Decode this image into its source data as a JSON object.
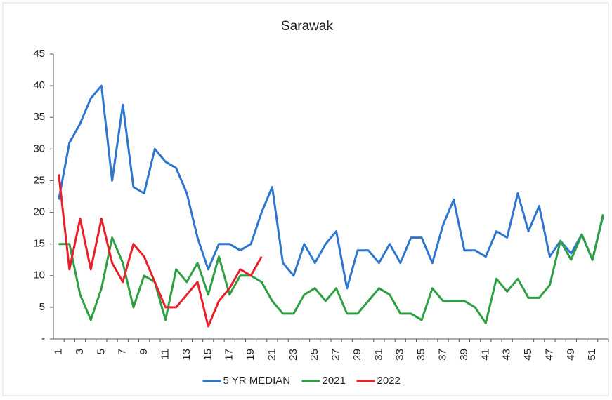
{
  "chart_data": {
    "type": "line",
    "title": "Sarawak",
    "categories": [
      "1",
      null,
      "3",
      null,
      "5",
      null,
      "7",
      null,
      "9",
      null,
      "11",
      null,
      "13",
      null,
      "15",
      null,
      "17",
      null,
      "19",
      null,
      "21",
      null,
      "23",
      null,
      "25",
      null,
      "27",
      null,
      "29",
      null,
      "31",
      null,
      "33",
      null,
      "35",
      null,
      "37",
      null,
      "39",
      null,
      "41",
      null,
      "43",
      null,
      "45",
      null,
      "47",
      null,
      "49",
      null,
      "51",
      null
    ],
    "series": [
      {
        "name": "5 YR MEDIAN",
        "color": "#2e75d0",
        "values": [
          22,
          31,
          34,
          38,
          40,
          25,
          37,
          24,
          23,
          30,
          28,
          27,
          23,
          16,
          11,
          15,
          15,
          14,
          15,
          20,
          24,
          12,
          10,
          15,
          12,
          15,
          17,
          8,
          14,
          14,
          12,
          15,
          12,
          16,
          16,
          12,
          18,
          22,
          14,
          14,
          13,
          17,
          16,
          23,
          17,
          21,
          13,
          15.5,
          13.5,
          16.5,
          12.5,
          19.5
        ]
      },
      {
        "name": "2021",
        "color": "#2ea043",
        "values": [
          15,
          15,
          7,
          3,
          8,
          16,
          12,
          5,
          10,
          9,
          3,
          11,
          9,
          12,
          7,
          13,
          7,
          10,
          10,
          9,
          6,
          4,
          4,
          7,
          8,
          6,
          8,
          4,
          4,
          6,
          8,
          7,
          4,
          4,
          3,
          8,
          6,
          6,
          6,
          5,
          2.5,
          9.5,
          7.5,
          9.5,
          6.5,
          6.5,
          8.5,
          15.5,
          12.5,
          16.5,
          12.5,
          19.7
        ]
      },
      {
        "name": "2022",
        "color": "#e8202a",
        "values": [
          26,
          11,
          19,
          11,
          19,
          12,
          9,
          15,
          13,
          9,
          5,
          5,
          7,
          9,
          2,
          6,
          8,
          11,
          10,
          13,
          null,
          null,
          null,
          null,
          null,
          null,
          null,
          null,
          null,
          null,
          null,
          null,
          null,
          null,
          null,
          null,
          null,
          null,
          null,
          null,
          null,
          null,
          null,
          null,
          null,
          null,
          null,
          null,
          null,
          null,
          null,
          null
        ]
      }
    ],
    "ylim": [
      0,
      45
    ],
    "yticks": [
      {
        "value": 0,
        "label": "-"
      },
      5,
      10,
      15,
      20,
      25,
      30,
      35,
      40,
      45
    ],
    "legend": "bottom"
  }
}
